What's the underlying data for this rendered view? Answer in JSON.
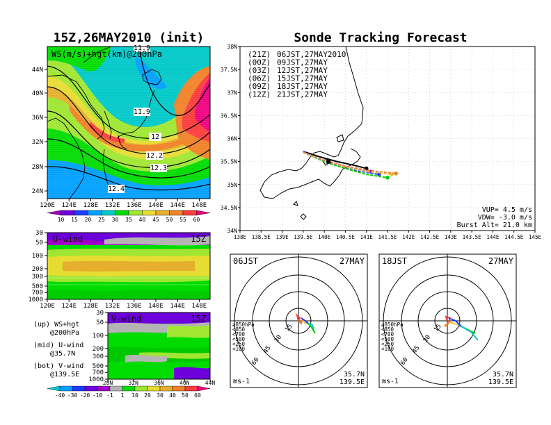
{
  "colors": {
    "ws_scale": [
      "#a000c8",
      "#6e00dc",
      "#1e3cff",
      "#00a0ff",
      "#00c8c8",
      "#00dc00",
      "#a0e632",
      "#e6dc32",
      "#e6af2d",
      "#f08228",
      "#fa3c3c",
      "#f00082"
    ],
    "wind_scale": [
      "#00c8c8",
      "#00a0ff",
      "#1e3cff",
      "#6e00dc",
      "#a000c8",
      "#b4b4b4",
      "#00dc00",
      "#a0e632",
      "#e6dc32",
      "#e6af2d",
      "#f08228",
      "#fa3c3c",
      "#f00082"
    ],
    "track_21Z": "#000000",
    "track_00Z": "#b400b4",
    "track_03Z": "#1e3cff",
    "track_06Z": "#00c800",
    "track_09Z": "#e6c832",
    "track_12Z": "#f08228"
  },
  "left": {
    "title": "15Z,26MAY2010 (init)",
    "map_label": "WS(m/s)+hgt(km)@200hPa",
    "lat_ticks": [
      "44N",
      "40N",
      "36N",
      "32N",
      "28N",
      "24N"
    ],
    "lon_ticks": [
      "120E",
      "124E",
      "128E",
      "132E",
      "136E",
      "140E",
      "144E",
      "148E"
    ],
    "contour_labels": [
      "11.9",
      "11.9",
      "12",
      "12.2",
      "12.3",
      "12.4"
    ],
    "ws_colorbar_labels": [
      "10",
      "15",
      "20",
      "25",
      "30",
      "35",
      "40",
      "45",
      "50",
      "55",
      "60"
    ],
    "uwind": {
      "label": "U-wind",
      "time": "15Z",
      "p_ticks": [
        "30",
        "50",
        "100",
        "200",
        "300",
        "500",
        "700",
        "1000"
      ],
      "lon_ticks": [
        "120E",
        "124E",
        "128E",
        "132E",
        "136E",
        "140E",
        "144E",
        "148E"
      ]
    },
    "vwind": {
      "label": "V-wind",
      "time": "15Z",
      "p_ticks": [
        "30",
        "50",
        "100",
        "200",
        "300",
        "500",
        "700",
        "1000"
      ],
      "lat_ticks": [
        "28N",
        "32N",
        "36N",
        "40N",
        "44N"
      ]
    },
    "legend_text": [
      "(up) WS+hgt",
      "@200hPa",
      "(mid) U-wind",
      "@35.7N",
      "(bot) V-wind",
      "@139.5E"
    ],
    "wind_colorbar_labels": [
      "-40",
      "-30",
      "-20",
      "-10",
      "-1",
      "1",
      "10",
      "20",
      "30",
      "40",
      "50",
      "60"
    ]
  },
  "right": {
    "title": "Sonde Tracking Forecast",
    "lat_ticks": [
      "38N",
      "37.5N",
      "37N",
      "36.5N",
      "36N",
      "35.5N",
      "35N",
      "34.5N",
      "34N"
    ],
    "lon_ticks": [
      "138E",
      "138.5E",
      "139E",
      "139.5E",
      "140E",
      "140.5E",
      "141E",
      "141.5E",
      "142E",
      "142.5E",
      "143E",
      "143.5E",
      "144E",
      "144.5E",
      "145E"
    ],
    "legend": [
      {
        "code": "(21Z)",
        "text": "06JST,27MAY2010"
      },
      {
        "code": "(00Z)",
        "text": "09JST,27MAY"
      },
      {
        "code": "(03Z)",
        "text": "12JST,27MAY"
      },
      {
        "code": "(06Z)",
        "text": "15JST,27MAY"
      },
      {
        "code": "(09Z)",
        "text": "18JST,27MAY"
      },
      {
        "code": "(12Z)",
        "text": "21JST,27MAY"
      }
    ],
    "info": [
      "VUP= 4.5 m/s",
      "VDW= -3.0 m/s",
      "Burst Alt= 21.0 km"
    ]
  },
  "hodo1": {
    "time": "06JST",
    "date": "27MAY",
    "rings": [
      "15",
      "30",
      "45",
      "60"
    ],
    "levels": [
      "≥850hPa",
      "<850",
      "<700",
      "<500",
      "<250",
      "<100"
    ],
    "unit": "ms-1",
    "lat": "35.7N",
    "lon": "139.5E"
  },
  "hodo2": {
    "time": "18JST",
    "date": "27MAY",
    "rings": [
      "15",
      "30",
      "45",
      "60"
    ],
    "levels": [
      "≥850hPa",
      "<850",
      "<700",
      "<500",
      "<250",
      "<100"
    ],
    "unit": "ms-1",
    "lat": "35.7N",
    "lon": "139.5E"
  },
  "chart_data": [
    {
      "type": "heatmap",
      "title": "15Z,26MAY2010 (init)",
      "subtitle": "WS(m/s)+hgt(km)@200hPa",
      "xlim": [
        120,
        150
      ],
      "ylim": [
        22,
        48
      ],
      "contour_levels_km": [
        11.9,
        12,
        12.2,
        12.3,
        12.4
      ],
      "colorbar": [
        10,
        15,
        20,
        25,
        30,
        35,
        40,
        45,
        50,
        55,
        60
      ]
    },
    {
      "type": "heatmap",
      "title": "U-wind",
      "xlim": [
        120,
        150
      ],
      "ylabel_ticks": [
        30,
        50,
        100,
        200,
        300,
        500,
        700,
        1000
      ]
    },
    {
      "type": "heatmap",
      "title": "V-wind",
      "xlim": [
        28,
        44
      ],
      "ylabel_ticks": [
        30,
        50,
        100,
        200,
        300,
        500,
        700,
        1000
      ],
      "colorbar": [
        -40,
        -30,
        -20,
        -10,
        -1,
        1,
        10,
        20,
        30,
        40,
        50,
        60
      ]
    },
    {
      "type": "line",
      "title": "Sonde Tracking Forecast",
      "xlim": [
        138,
        145
      ],
      "ylim": [
        34,
        38
      ],
      "series": [
        {
          "name": "(21Z) 06JST,27MAY2010",
          "color": "#000000",
          "x": [
            139.5,
            139.9,
            140.3,
            140.7,
            141.0
          ],
          "y": [
            35.72,
            35.6,
            35.5,
            35.42,
            35.35
          ]
        },
        {
          "name": "(00Z) 09JST,27MAY",
          "color": "#b400b4",
          "x": [
            139.5,
            139.9,
            140.3,
            140.7,
            141.1
          ],
          "y": [
            35.72,
            35.55,
            35.45,
            35.35,
            35.28
          ]
        },
        {
          "name": "(03Z) 12JST,27MAY",
          "color": "#1e3cff",
          "x": [
            139.5,
            140.0,
            140.4,
            140.9,
            141.3
          ],
          "y": [
            35.72,
            35.5,
            35.38,
            35.28,
            35.22
          ]
        },
        {
          "name": "(06Z) 15JST,27MAY",
          "color": "#00c800",
          "x": [
            139.5,
            140.0,
            140.5,
            141.0,
            141.5
          ],
          "y": [
            35.7,
            35.5,
            35.35,
            35.22,
            35.15
          ]
        },
        {
          "name": "(09Z) 18JST,27MAY",
          "color": "#e6c832",
          "x": [
            139.5,
            140.0,
            140.5,
            141.0,
            141.6
          ],
          "y": [
            35.7,
            35.52,
            35.38,
            35.28,
            35.22
          ]
        },
        {
          "name": "(12Z) 21JST,27MAY",
          "color": "#f08228",
          "x": [
            139.5,
            140.0,
            140.5,
            141.1,
            141.7
          ],
          "y": [
            35.7,
            35.52,
            35.4,
            35.3,
            35.24
          ]
        }
      ]
    }
  ]
}
